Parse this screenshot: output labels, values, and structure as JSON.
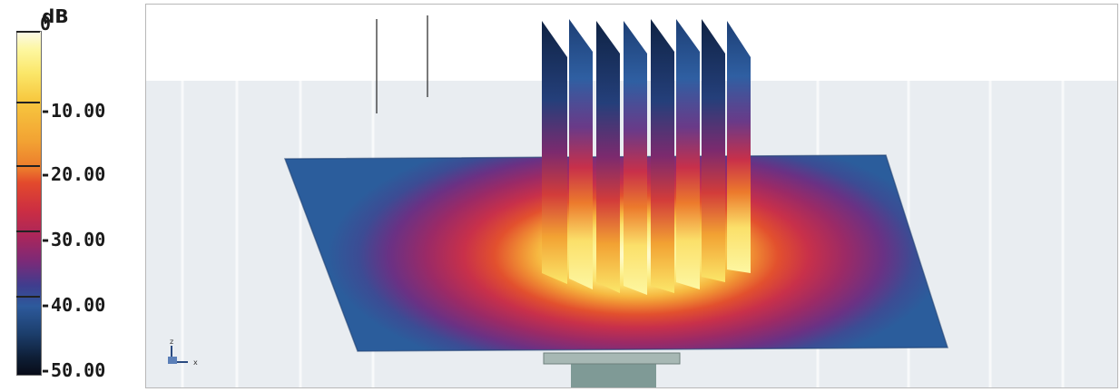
{
  "legend": {
    "unit": "dB",
    "ticks": [
      {
        "label": "0",
        "value": 0
      },
      {
        "label": "-10.00",
        "value": -10
      },
      {
        "label": "-20.00",
        "value": -20
      },
      {
        "label": "-30.00",
        "value": -30
      },
      {
        "label": "-40.00",
        "value": -40
      },
      {
        "label": "-50.00",
        "value": -50
      }
    ],
    "range": [
      -50,
      0
    ]
  },
  "axes_triad": {
    "z_label": "z",
    "x_label": "x"
  },
  "colors": {
    "field_hot": "#fdf7a2",
    "field_mid": "#e34a2c",
    "field_cool": "#7b2a78",
    "field_cold": "#2d5a9c",
    "background_panel": "#e9edf1",
    "pedestal": "#7f9a96"
  }
}
